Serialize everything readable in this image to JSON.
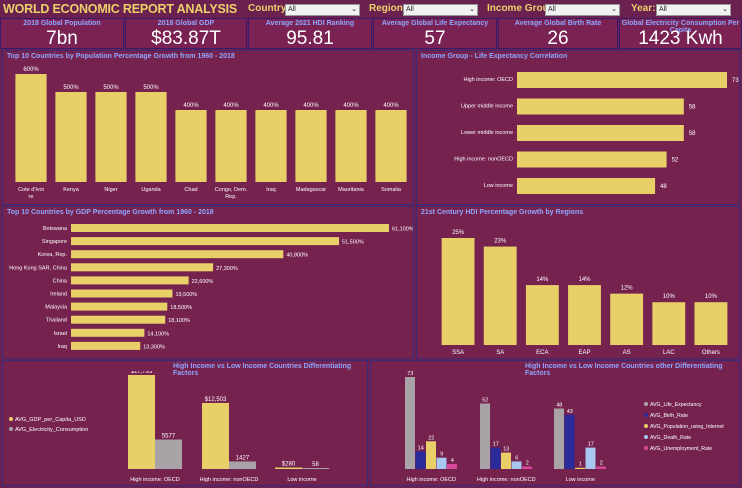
{
  "header": {
    "title": "WORLD ECONOMIC REPORT ANALYSIS"
  },
  "filters": [
    {
      "label": "Country:",
      "value": "All"
    },
    {
      "label": "Region:",
      "value": "All"
    },
    {
      "label": "Income Group:",
      "value": "All"
    },
    {
      "label": "Year:",
      "value": "All"
    }
  ],
  "kpis": [
    {
      "label": "2018 Global Population",
      "value": "7bn"
    },
    {
      "label": "2018 Global GDP",
      "value": "$83.87T"
    },
    {
      "label": "Average 2021 HDI Ranking",
      "value": "95.81"
    },
    {
      "label": "Average Global Life Expectancy",
      "value": "57"
    },
    {
      "label": "Average Global Birth Rate",
      "value": "26"
    },
    {
      "label": "Global Electricity Consumption Per Capita",
      "value": "1423 Kwh"
    }
  ],
  "colors": {
    "bar": "#e8cf68",
    "background": "#6b2150",
    "panel": "#75224f",
    "title": "#8fa6ff",
    "gray": "#a9a3a8",
    "navy": "#2a2a9a",
    "lightblue": "#a8c8f0",
    "pink": "#d8489a"
  },
  "chart_data": [
    {
      "type": "bar",
      "title": "Top 10 Countries by Population Percentage Growth from 1960 - 2018",
      "categories": [
        "Cote d'Ivoire",
        "Kenya",
        "Niger",
        "Uganda",
        "Chad",
        "Congo, Dem. Rep.",
        "Iraq",
        "Madagascar",
        "Mauritania",
        "Somalia"
      ],
      "values": [
        600,
        500,
        500,
        500,
        400,
        400,
        400,
        400,
        400,
        400
      ],
      "labels": [
        "600%",
        "500%",
        "500%",
        "500%",
        "400%",
        "400%",
        "400%",
        "400%",
        "400%",
        "400%"
      ]
    },
    {
      "type": "bar",
      "orientation": "horizontal",
      "title": "Income Group - Life Expectancy Correlation",
      "categories": [
        "High income: OECD",
        "Upper middle income",
        "Lower middle income",
        "High income: nonOECD",
        "Low income"
      ],
      "values": [
        73,
        58,
        58,
        52,
        48
      ]
    },
    {
      "type": "bar",
      "orientation": "horizontal",
      "title": "Top 10 Countries by GDP Percentage Growth from 1960 - 2018",
      "categories": [
        "Botswana",
        "Singapore",
        "Korea, Rep.",
        "Hong Kong SAR, China",
        "China",
        "Ireland",
        "Malaysia",
        "Thailand",
        "Israel",
        "Iraq"
      ],
      "values": [
        61100,
        51500,
        40800,
        27300,
        22600,
        19500,
        18500,
        18100,
        14100,
        13300
      ],
      "labels": [
        "61,100%",
        "51,500%",
        "40,800%",
        "27,300%",
        "22,600%",
        "19,500%",
        "18,500%",
        "18,100%",
        "14,100%",
        "13,300%"
      ]
    },
    {
      "type": "bar",
      "title": "21st Century HDI Percentage Growth by Regions",
      "categories": [
        "SSA",
        "SA",
        "ECA",
        "EAP",
        "AS",
        "LAC",
        "Others"
      ],
      "values": [
        25,
        23,
        14,
        14,
        12,
        10,
        10
      ],
      "labels": [
        "25%",
        "23%",
        "14%",
        "14%",
        "12%",
        "10%",
        "10%"
      ]
    },
    {
      "type": "bar",
      "title": "High Income vs Low Income Countries Differentiating  Factors",
      "categories": [
        "High income: OECD",
        "High income: nonOECD",
        "Low income"
      ],
      "series": [
        {
          "name": "AVG_GDP_per_Capita_USD",
          "values": [
            17793,
            12503,
            280
          ],
          "labels": [
            "$17,793",
            "$12,503",
            "$280"
          ]
        },
        {
          "name": "AVG_Electricity_Consumption",
          "values": [
            5577,
            1427,
            58
          ],
          "labels": [
            "5577",
            "1427",
            "58"
          ]
        }
      ]
    },
    {
      "type": "bar",
      "title": "High Income vs Low Income Countries other Differentiating  Factors",
      "categories": [
        "High income: OECD",
        "High income: nonOECD",
        "Low income"
      ],
      "series": [
        {
          "name": "AVG_Life_Expectancy",
          "values": [
            73,
            52,
            48
          ]
        },
        {
          "name": "AVG_Birth_Rate",
          "values": [
            14,
            17,
            43
          ]
        },
        {
          "name": "AVG_Population_using_Internet",
          "values": [
            22,
            13,
            1
          ]
        },
        {
          "name": "AVG_Death_Rate",
          "values": [
            9,
            6,
            17
          ]
        },
        {
          "name": "AVG_Unemployment_Rate",
          "values": [
            4,
            2,
            2
          ]
        }
      ]
    }
  ]
}
